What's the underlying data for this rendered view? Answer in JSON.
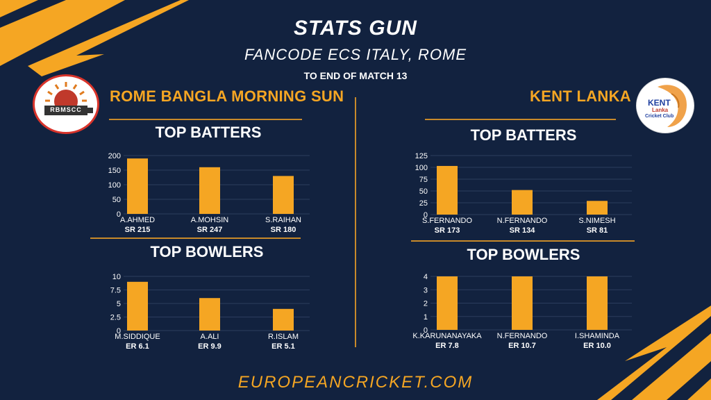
{
  "header": {
    "title": "STATS GUN",
    "subtitle": "FANCODE ECS ITALY, ROME",
    "note": "TO END OF MATCH 13"
  },
  "left_team": {
    "name": "ROME BANGLA MORNING SUN",
    "logo_text": "RBMSCC",
    "batters_heading": "TOP BATTERS",
    "bowlers_heading": "TOP BOWLERS"
  },
  "right_team": {
    "name": "KENT LANKA",
    "logo_text_1": "KENT",
    "logo_text_2": "Lanka",
    "logo_text_3": "Cricket Club",
    "batters_heading": "TOP BATTERS",
    "bowlers_heading": "TOP BOWLERS"
  },
  "footer": {
    "site": "EUROPEANCRICKET.COM"
  },
  "colors": {
    "background": "#12223f",
    "accent": "#f5a623",
    "text": "#ffffff"
  },
  "chart_data": [
    {
      "type": "bar",
      "team": "ROME BANGLA MORNING SUN",
      "title": "TOP BATTERS",
      "categories": [
        "A.AHMED",
        "A.MOHSIN",
        "S.RAIHAN"
      ],
      "sublabels": [
        "SR 215",
        "SR 247",
        "SR 180"
      ],
      "values": [
        190,
        160,
        130
      ],
      "ylim": [
        0,
        200
      ],
      "yticks": [
        0,
        50,
        100,
        150,
        200
      ],
      "ytick_labels": [
        "0",
        "50",
        "100",
        "150",
        "200"
      ]
    },
    {
      "type": "bar",
      "team": "ROME BANGLA MORNING SUN",
      "title": "TOP BOWLERS",
      "categories": [
        "M.SIDDIQUE",
        "A.ALI",
        "R.ISLAM"
      ],
      "sublabels": [
        "ER 6.1",
        "ER 9.9",
        "ER 5.1"
      ],
      "values": [
        9,
        6,
        4
      ],
      "ylim": [
        0,
        10
      ],
      "yticks": [
        0,
        2.5,
        5,
        7.5,
        10
      ],
      "ytick_labels": [
        "0",
        "2.5",
        "5",
        "7.5",
        "10"
      ]
    },
    {
      "type": "bar",
      "team": "KENT LANKA",
      "title": "TOP BATTERS",
      "categories": [
        "S.FERNANDO",
        "N.FERNANDO",
        "S.NIMESH"
      ],
      "sublabels": [
        "SR 173",
        "SR 134",
        "SR 81"
      ],
      "values": [
        103,
        52,
        29
      ],
      "ylim": [
        0,
        125
      ],
      "yticks": [
        0,
        25,
        50,
        75,
        100,
        125
      ],
      "ytick_labels": [
        "0",
        "25",
        "50",
        "75",
        "100",
        "125"
      ]
    },
    {
      "type": "bar",
      "team": "KENT LANKA",
      "title": "TOP BOWLERS",
      "categories": [
        "K.KARUNANAYAKA",
        "N.FERNANDO",
        "I.SHAMINDA"
      ],
      "sublabels": [
        "ER 7.8",
        "ER 10.7",
        "ER 10.0"
      ],
      "values": [
        4,
        4,
        4
      ],
      "ylim": [
        0,
        4
      ],
      "yticks": [
        0,
        1,
        2,
        3,
        4
      ],
      "ytick_labels": [
        "0",
        "1",
        "2",
        "3",
        "4"
      ]
    }
  ]
}
